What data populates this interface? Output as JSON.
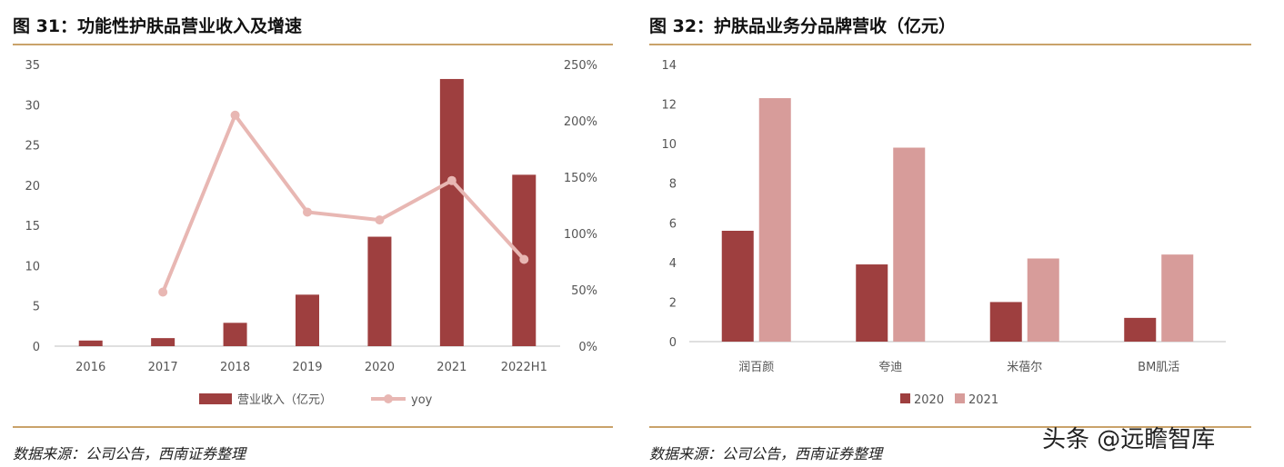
{
  "left_panel": {
    "figure_title": "图 31：功能性护肤品营业收入及增速",
    "source_text": "数据来源：公司公告，西南证券整理"
  },
  "right_panel": {
    "figure_title": "图 32：护肤品业务分品牌营收（亿元）",
    "source_text": "数据来源：公司公告，西南证券整理"
  },
  "watermark": "头条 @远瞻智库",
  "chart_data": [
    {
      "type": "bar+line",
      "categories": [
        "2016",
        "2017",
        "2018",
        "2019",
        "2020",
        "2021",
        "2022H1"
      ],
      "series": [
        {
          "name": "营业收入（亿元）",
          "type": "bar",
          "axis": "left",
          "color": "#9e3f3f",
          "values": [
            0.7,
            1.0,
            2.9,
            6.4,
            13.6,
            33.2,
            21.3
          ]
        },
        {
          "name": "yoy",
          "type": "line",
          "axis": "right",
          "color": "#e8b7b3",
          "values": [
            null,
            0.48,
            2.05,
            1.19,
            1.12,
            1.47,
            0.77
          ]
        }
      ],
      "ylim_left": [
        0,
        35
      ],
      "yticks_left": [
        "0",
        "5",
        "10",
        "15",
        "20",
        "25",
        "30",
        "35"
      ],
      "ylim_right": [
        0,
        2.5
      ],
      "yticks_right": [
        "0%",
        "50%",
        "100%",
        "150%",
        "200%",
        "250%"
      ],
      "legend_position": "bottom"
    },
    {
      "type": "bar",
      "categories": [
        "润百颜",
        "夸迪",
        "米蓓尔",
        "BM肌活"
      ],
      "series": [
        {
          "name": "2020",
          "color": "#9e3f3f",
          "values": [
            5.6,
            3.9,
            2.0,
            1.2
          ]
        },
        {
          "name": "2021",
          "color": "#d79c9a",
          "values": [
            12.3,
            9.8,
            4.2,
            4.4
          ]
        }
      ],
      "ylim": [
        0,
        14
      ],
      "yticks": [
        "0",
        "2",
        "4",
        "6",
        "8",
        "10",
        "12",
        "14"
      ],
      "legend_position": "bottom"
    }
  ]
}
